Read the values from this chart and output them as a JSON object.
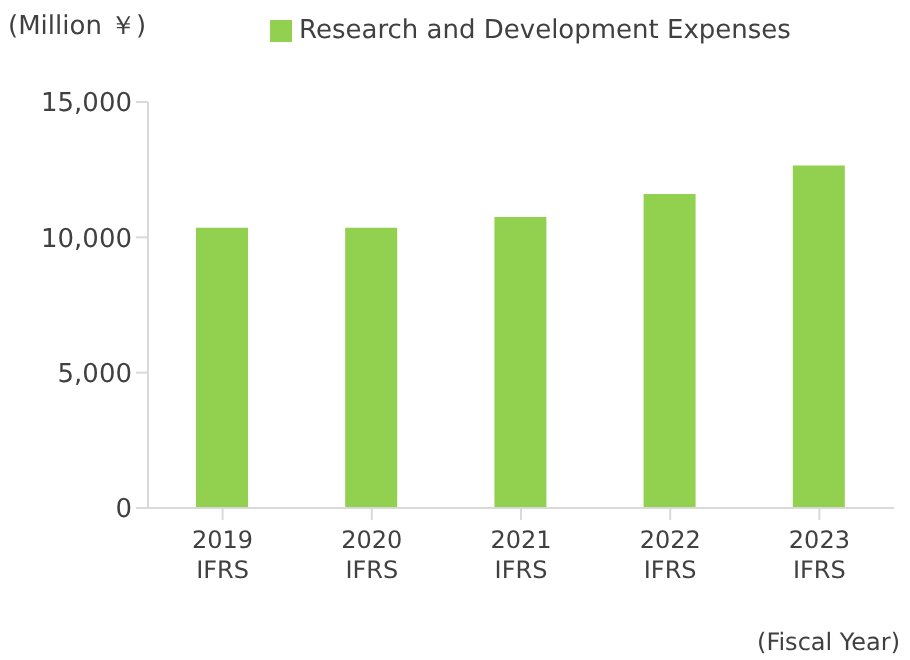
{
  "chart_data": {
    "type": "bar",
    "xlabel": "(Fiscal Year)",
    "ylabel": "(Million ￥)",
    "categories": [
      "2019\nIFRS",
      "2020\nIFRS",
      "2021\nIFRS",
      "2022\nIFRS",
      "2023\nIFRS"
    ],
    "series": [
      {
        "name": "Research and Development Expenses",
        "color": "#92d050",
        "values": [
          10350,
          10350,
          10750,
          11600,
          12650
        ]
      }
    ],
    "ylim": [
      0,
      15000
    ],
    "yticks": [
      {
        "value": 0,
        "label": "0"
      },
      {
        "value": 5000,
        "label": "5,000"
      },
      {
        "value": 10000,
        "label": "10,000"
      },
      {
        "value": 15000,
        "label": "15,000"
      }
    ],
    "grid": false,
    "legend": "top"
  }
}
